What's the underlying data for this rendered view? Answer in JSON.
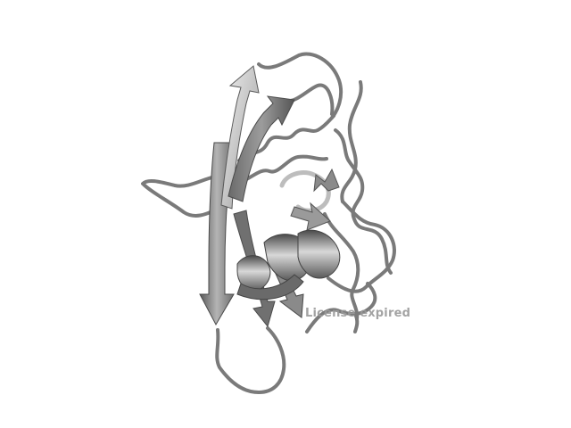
{
  "viewer": {
    "watermark": "License expired",
    "background_color": "#ffffff",
    "structure_color": "#808080"
  }
}
